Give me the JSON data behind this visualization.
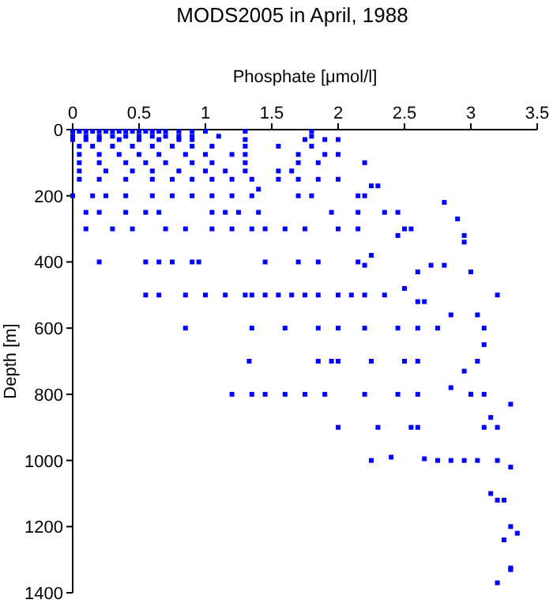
{
  "chart_data": {
    "type": "scatter",
    "title": "MODS2005 in April, 1988",
    "xlabel": "Phosphate [μmol/l]",
    "ylabel": "Depth [m]",
    "xlim": [
      0,
      3.5
    ],
    "xticks": [
      0,
      0.5,
      1,
      1.5,
      2,
      2.5,
      3,
      3.5
    ],
    "ylim": [
      1400,
      0
    ],
    "yticks": [
      0,
      200,
      400,
      600,
      800,
      1000,
      1200,
      1400
    ],
    "marker": "square",
    "grid": false,
    "series": [
      {
        "color": "#0000ff",
        "x": [
          0,
          0.05,
          0.1,
          0.15,
          0.2,
          0.25,
          0.3,
          0.35,
          0.4,
          0.45,
          0.5,
          0.55,
          0.6,
          0.65,
          0.7,
          0.8,
          0.9,
          1.0,
          1.3,
          1.8,
          0,
          0.1,
          0.2,
          0.3,
          0.4,
          0.5,
          0.6,
          0.7,
          0.8,
          0.9,
          1.1,
          1.8,
          0,
          0.1,
          0.2,
          0.35,
          0.5,
          0.65,
          0.8,
          0.9,
          1.3,
          1.75,
          1.9,
          2.0,
          0.05,
          0.15,
          0.3,
          0.45,
          0.6,
          0.75,
          0.9,
          1.05,
          1.3,
          1.55,
          1.8,
          0.05,
          0.2,
          0.35,
          0.5,
          0.65,
          0.85,
          1.0,
          1.2,
          1.3,
          1.7,
          1.9,
          2.0,
          0.05,
          0.2,
          0.4,
          0.55,
          0.7,
          0.9,
          1.05,
          1.3,
          1.7,
          1.85,
          2.2,
          0.05,
          0.25,
          0.45,
          0.6,
          0.8,
          1.0,
          1.15,
          1.3,
          1.55,
          1.65,
          0.05,
          0.2,
          0.4,
          0.6,
          0.75,
          0.9,
          1.05,
          1.2,
          1.35,
          1.55,
          1.7,
          1.85,
          2.0,
          2.25,
          2.3,
          1.4,
          0,
          0.15,
          0.25,
          0.4,
          0.6,
          0.75,
          0.9,
          1.05,
          1.2,
          1.35,
          1.7,
          1.8,
          2.15,
          2.2,
          2.8,
          1.05,
          0.1,
          0.2,
          0.4,
          0.55,
          0.65,
          1.15,
          1.25,
          1.4,
          1.95,
          2.15,
          2.35,
          2.45,
          2.9,
          0.1,
          0.3,
          0.45,
          0.7,
          0.85,
          1.05,
          1.2,
          1.35,
          1.45,
          1.6,
          1.75,
          2.0,
          2.15,
          2.5,
          2.55,
          2.95,
          2.45,
          2.95,
          2.25,
          2.15,
          0.2,
          0.55,
          0.65,
          0.75,
          0.9,
          0.95,
          1.45,
          1.7,
          1.85,
          2.2,
          2.7,
          2.8,
          3.0,
          2.6,
          3.2,
          0.55,
          0.65,
          0.85,
          1.0,
          1.15,
          1.3,
          1.35,
          1.45,
          1.55,
          1.65,
          1.75,
          1.85,
          2.0,
          2.1,
          2.2,
          2.35,
          2.5,
          2.65,
          2.6,
          3.05,
          2.85,
          3.1,
          0.85,
          1.35,
          1.6,
          1.85,
          2.0,
          2.2,
          2.45,
          2.6,
          2.75,
          3.1,
          3.05,
          1.33,
          1.85,
          1.95,
          2.0,
          2.25,
          2.5,
          2.6,
          2.85,
          2.95,
          3.0,
          1.2,
          1.35,
          1.45,
          1.6,
          1.75,
          1.9,
          2.2,
          2.45,
          2.6,
          3.0,
          3.1,
          3.3,
          3.2,
          2.0,
          2.3,
          2.55,
          2.6,
          3.1,
          3.15,
          2.95,
          2.25,
          2.4,
          2.65,
          2.75,
          2.85,
          3.05,
          3.2,
          3.3,
          3.15,
          3.2,
          3.25,
          3.3,
          3.35,
          3.25,
          3.3,
          3.3,
          3.2
        ],
        "values": [
          5,
          5,
          5,
          5,
          5,
          5,
          5,
          5,
          5,
          5,
          5,
          5,
          5,
          5,
          5,
          5,
          5,
          5,
          5,
          5,
          20,
          20,
          20,
          20,
          20,
          20,
          20,
          20,
          20,
          20,
          20,
          20,
          30,
          30,
          30,
          30,
          30,
          30,
          30,
          30,
          30,
          30,
          30,
          30,
          50,
          50,
          50,
          50,
          50,
          50,
          50,
          50,
          50,
          50,
          50,
          75,
          75,
          75,
          75,
          75,
          75,
          75,
          75,
          75,
          75,
          75,
          75,
          100,
          100,
          100,
          100,
          100,
          100,
          100,
          100,
          100,
          100,
          100,
          125,
          125,
          125,
          125,
          125,
          125,
          125,
          125,
          125,
          125,
          150,
          150,
          150,
          150,
          150,
          150,
          150,
          150,
          150,
          150,
          150,
          150,
          150,
          170,
          170,
          180,
          200,
          200,
          200,
          200,
          200,
          200,
          200,
          200,
          200,
          200,
          200,
          200,
          200,
          200,
          220,
          250,
          250,
          250,
          250,
          250,
          250,
          250,
          250,
          250,
          250,
          250,
          250,
          250,
          270,
          300,
          300,
          300,
          300,
          300,
          300,
          300,
          300,
          300,
          300,
          300,
          300,
          300,
          300,
          300,
          320,
          320,
          340,
          380,
          400,
          400,
          400,
          400,
          400,
          400,
          400,
          400,
          400,
          400,
          410,
          410,
          410,
          430,
          430,
          500,
          500,
          500,
          500,
          500,
          500,
          500,
          500,
          500,
          500,
          500,
          500,
          500,
          500,
          500,
          500,
          500,
          480,
          520,
          520,
          560,
          560,
          600,
          600,
          600,
          600,
          600,
          600,
          600,
          600,
          600,
          600,
          650,
          700,
          700,
          700,
          700,
          700,
          700,
          700,
          700,
          780,
          730,
          800,
          800,
          800,
          800,
          800,
          800,
          800,
          800,
          800,
          800,
          800,
          800,
          830,
          900,
          900,
          900,
          900,
          900,
          900,
          870,
          1000,
          1000,
          990,
          995,
          1000,
          1000,
          1000,
          1000,
          1020,
          1100,
          1120,
          1120,
          1200,
          1220,
          1240,
          1330,
          1325,
          1370
        ]
      }
    ]
  }
}
